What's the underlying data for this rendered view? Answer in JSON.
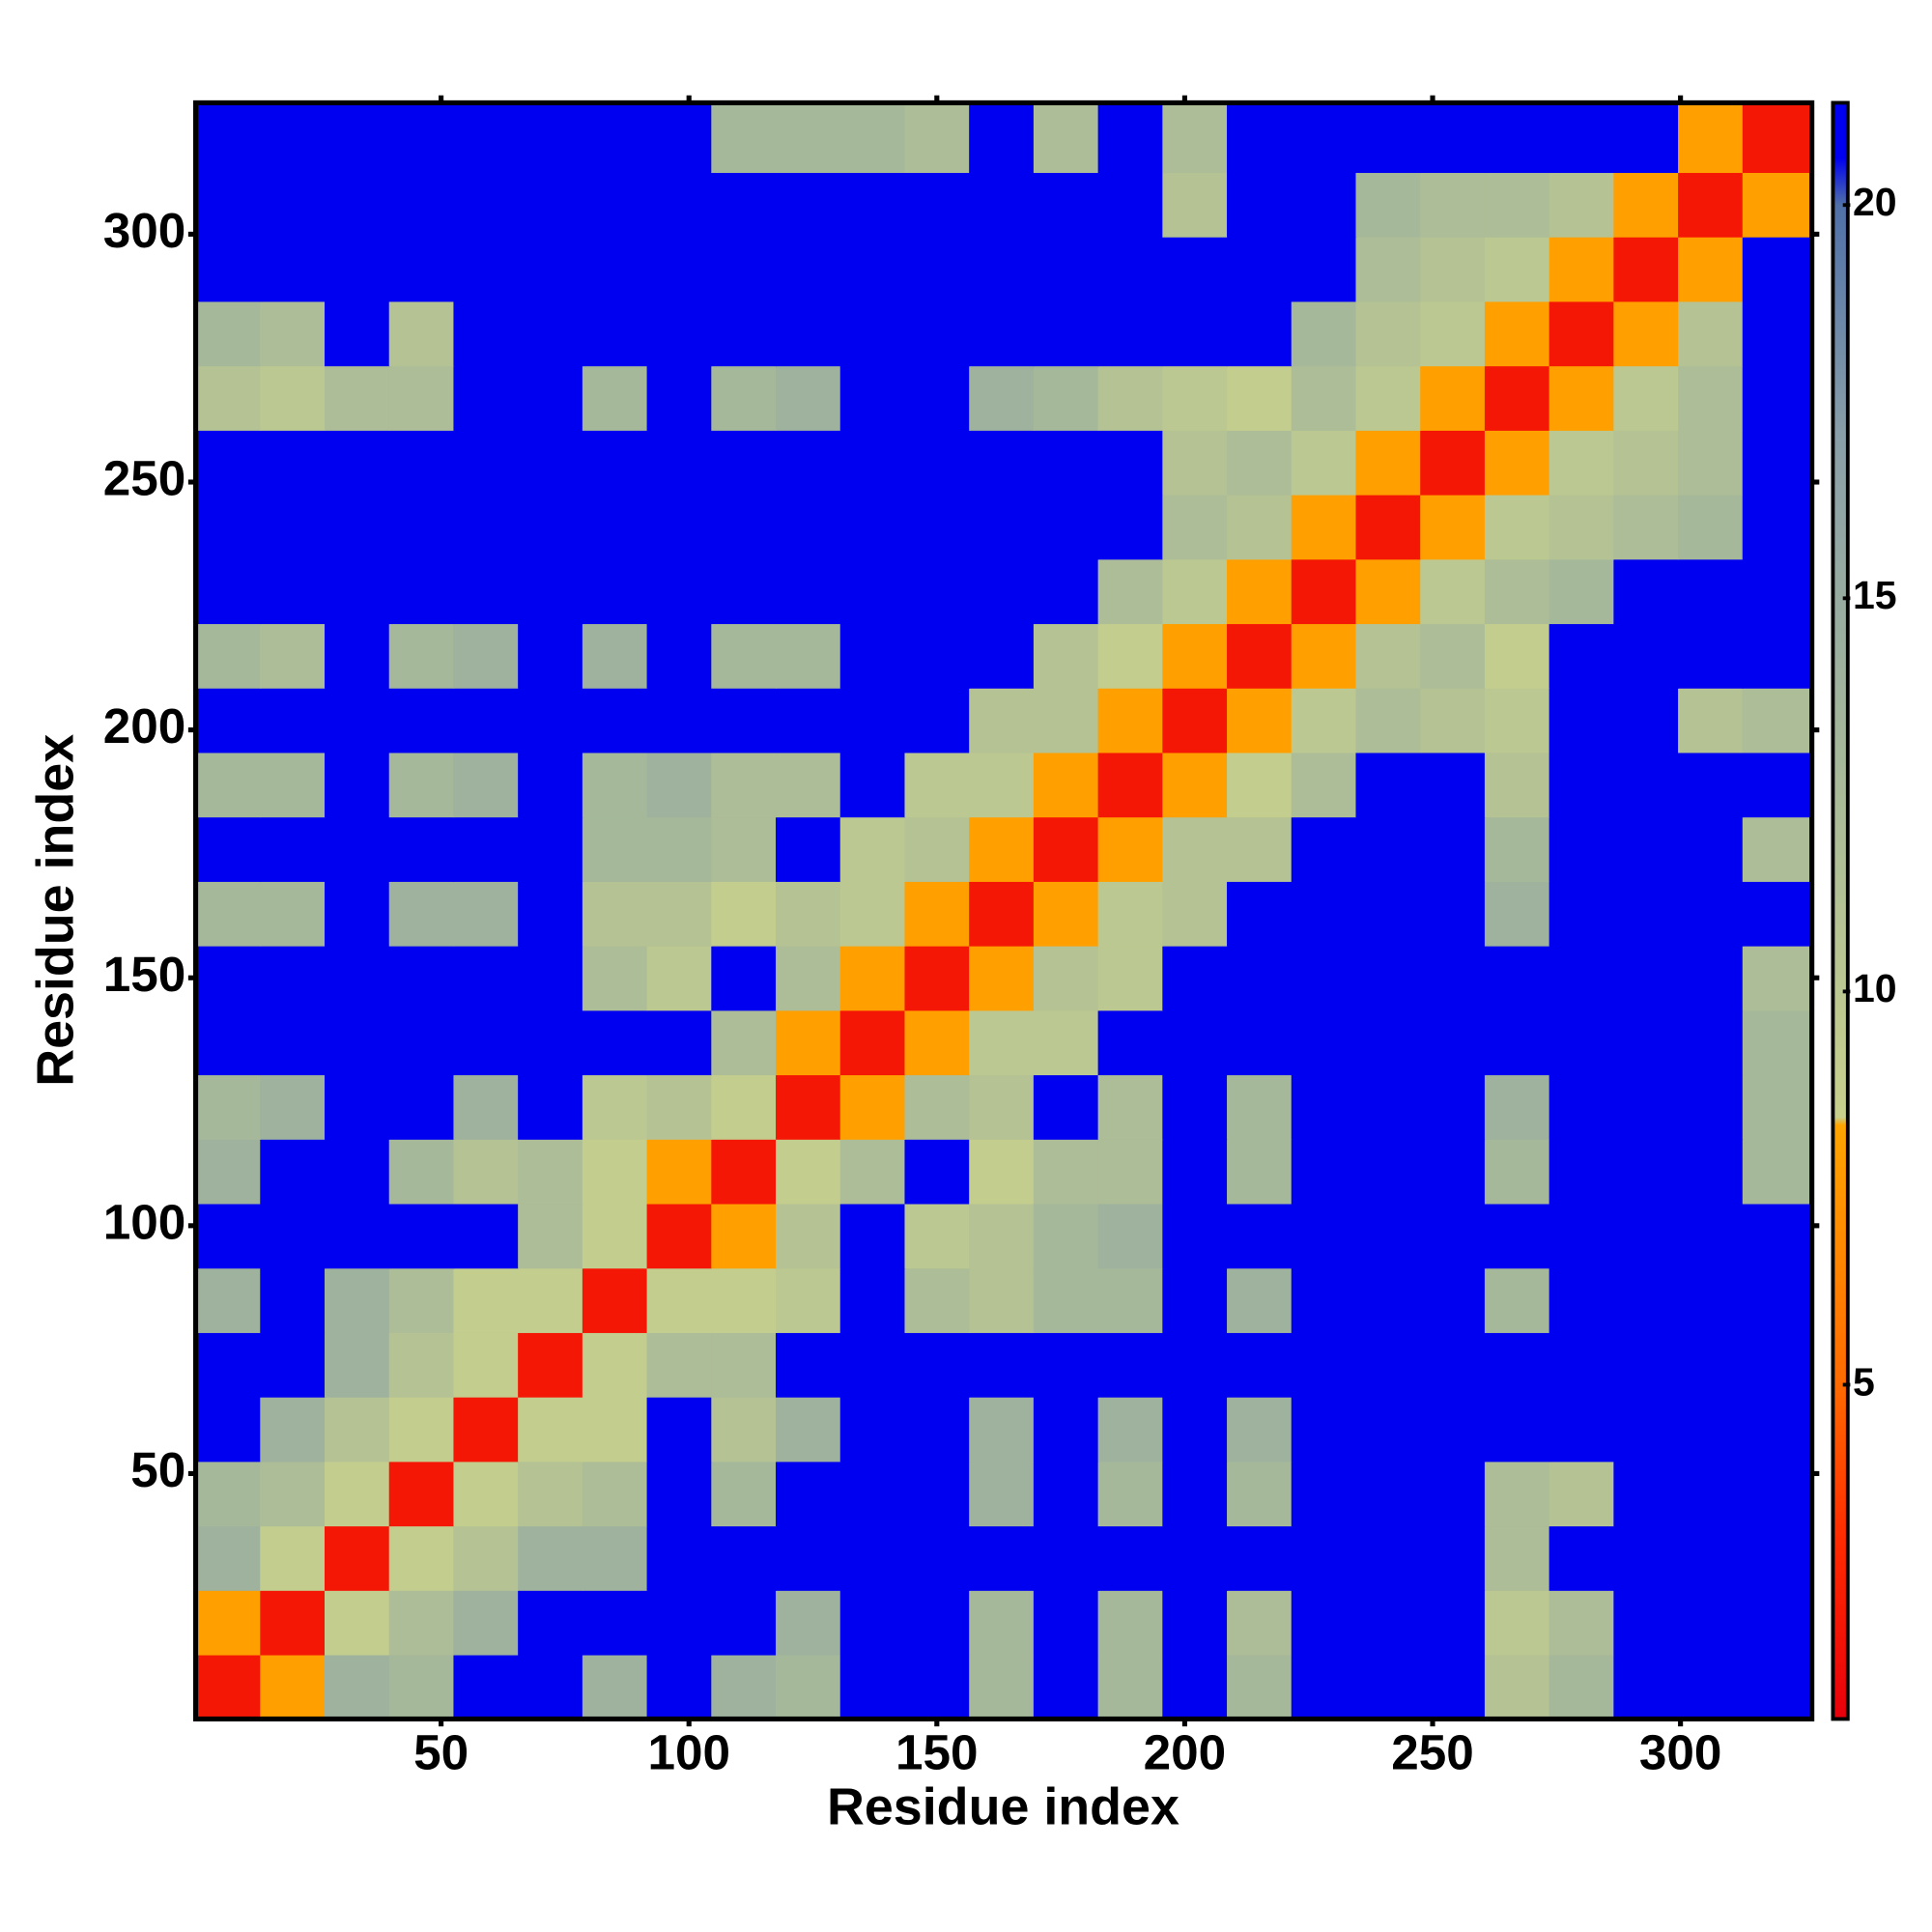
{
  "chart_data": {
    "type": "heatmap",
    "x_label": "Residue index",
    "y_label": "Residue index",
    "x_edges": [
      0.5,
      13.5,
      26.5,
      39.5,
      52.5,
      65.5,
      78.5,
      91.5,
      104.5,
      117.5,
      130.5,
      143.5,
      156.5,
      169.5,
      182.5,
      195.5,
      208.5,
      221.5,
      234.5,
      247.5,
      260.5,
      273.5,
      286.5,
      299.5,
      312.5,
      326.5
    ],
    "y_edges": [
      0.5,
      13.5,
      26.5,
      39.5,
      52.5,
      65.5,
      78.5,
      91.5,
      104.5,
      117.5,
      130.5,
      143.5,
      156.5,
      169.5,
      182.5,
      195.5,
      208.5,
      221.5,
      234.5,
      247.5,
      260.5,
      273.5,
      286.5,
      299.5,
      312.5,
      326.5
    ],
    "values": [
      [
        2,
        8,
        14,
        13,
        21,
        21,
        14,
        21,
        14,
        13,
        21,
        21,
        13,
        21,
        13,
        21,
        13,
        21,
        21,
        21,
        11,
        13,
        21,
        21,
        21
      ],
      [
        8,
        2,
        9,
        12,
        14,
        21,
        21,
        21,
        21,
        14,
        21,
        21,
        13,
        21,
        13,
        21,
        12,
        21,
        21,
        21,
        10,
        12,
        21,
        21,
        21
      ],
      [
        14,
        9,
        2,
        9,
        11,
        14,
        14,
        21,
        21,
        21,
        21,
        21,
        21,
        21,
        21,
        21,
        21,
        21,
        21,
        21,
        12,
        21,
        21,
        21,
        21
      ],
      [
        13,
        12,
        9,
        2,
        9,
        11,
        12,
        21,
        13,
        21,
        21,
        21,
        14,
        21,
        13,
        21,
        13,
        21,
        21,
        21,
        12,
        11,
        21,
        21,
        21
      ],
      [
        21,
        14,
        11,
        9,
        2,
        9,
        9,
        21,
        11,
        14,
        21,
        21,
        14,
        21,
        14,
        21,
        14,
        21,
        21,
        21,
        21,
        21,
        21,
        21,
        21
      ],
      [
        21,
        21,
        14,
        11,
        9,
        2,
        9,
        12,
        12,
        21,
        21,
        21,
        21,
        21,
        21,
        21,
        21,
        21,
        21,
        21,
        21,
        21,
        21,
        21,
        21
      ],
      [
        14,
        21,
        14,
        12,
        9,
        9,
        2,
        9,
        9,
        10,
        21,
        12,
        11,
        13,
        13,
        21,
        14,
        21,
        21,
        21,
        13,
        21,
        21,
        21,
        21
      ],
      [
        21,
        21,
        21,
        21,
        21,
        12,
        9,
        2,
        8,
        11,
        21,
        10,
        11,
        13,
        14,
        21,
        21,
        21,
        21,
        21,
        21,
        21,
        21,
        21,
        21
      ],
      [
        14,
        21,
        21,
        13,
        11,
        12,
        9,
        8,
        2,
        9,
        12,
        21,
        9,
        12,
        12,
        21,
        13,
        21,
        21,
        21,
        13,
        21,
        21,
        21,
        13
      ],
      [
        13,
        14,
        21,
        21,
        14,
        21,
        10,
        11,
        9,
        2,
        8,
        12,
        11,
        21,
        12,
        21,
        13,
        21,
        21,
        21,
        14,
        21,
        21,
        21,
        13
      ],
      [
        21,
        21,
        21,
        21,
        21,
        21,
        21,
        21,
        12,
        8,
        2,
        8,
        10,
        10,
        21,
        21,
        21,
        21,
        21,
        21,
        21,
        21,
        21,
        21,
        13
      ],
      [
        21,
        21,
        21,
        21,
        21,
        21,
        12,
        10,
        21,
        12,
        8,
        2,
        8,
        11,
        10,
        21,
        21,
        21,
        21,
        21,
        21,
        21,
        21,
        21,
        12
      ],
      [
        13,
        13,
        21,
        14,
        14,
        21,
        11,
        11,
        9,
        11,
        10,
        8,
        2,
        8,
        10,
        11,
        21,
        21,
        21,
        21,
        14,
        21,
        21,
        21,
        21
      ],
      [
        21,
        21,
        21,
        21,
        21,
        21,
        13,
        13,
        12,
        21,
        10,
        11,
        8,
        2,
        8,
        11,
        11,
        21,
        21,
        21,
        13,
        21,
        21,
        21,
        12
      ],
      [
        13,
        13,
        21,
        13,
        14,
        21,
        13,
        14,
        12,
        12,
        21,
        10,
        10,
        8,
        2,
        8,
        9,
        12,
        21,
        21,
        11,
        21,
        21,
        21,
        21
      ],
      [
        21,
        21,
        21,
        21,
        21,
        21,
        21,
        21,
        21,
        21,
        21,
        21,
        11,
        11,
        8,
        2,
        8,
        10,
        12,
        11,
        10,
        21,
        21,
        11,
        12
      ],
      [
        13,
        12,
        21,
        13,
        14,
        21,
        14,
        21,
        13,
        13,
        21,
        21,
        21,
        11,
        9,
        8,
        2,
        8,
        11,
        12,
        9,
        21,
        21,
        21,
        21
      ],
      [
        21,
        21,
        21,
        21,
        21,
        21,
        21,
        21,
        21,
        21,
        21,
        21,
        21,
        21,
        12,
        10,
        8,
        2,
        8,
        10,
        12,
        13,
        21,
        21,
        21
      ],
      [
        21,
        21,
        21,
        21,
        21,
        21,
        21,
        21,
        21,
        21,
        21,
        21,
        21,
        21,
        21,
        12,
        11,
        8,
        2,
        8,
        10,
        11,
        12,
        13,
        21
      ],
      [
        21,
        21,
        21,
        21,
        21,
        21,
        21,
        21,
        21,
        21,
        21,
        21,
        21,
        21,
        21,
        11,
        12,
        10,
        8,
        2,
        8,
        10,
        11,
        12,
        21
      ],
      [
        11,
        10,
        12,
        12,
        21,
        21,
        13,
        21,
        13,
        14,
        21,
        21,
        14,
        13,
        11,
        10,
        9,
        12,
        10,
        8,
        2,
        8,
        10,
        12,
        21
      ],
      [
        13,
        12,
        21,
        11,
        21,
        21,
        21,
        21,
        21,
        21,
        21,
        21,
        21,
        21,
        21,
        21,
        21,
        13,
        11,
        10,
        8,
        2,
        8,
        11,
        21
      ],
      [
        21,
        21,
        21,
        21,
        21,
        21,
        21,
        21,
        21,
        21,
        21,
        21,
        21,
        21,
        21,
        21,
        21,
        21,
        12,
        11,
        10,
        8,
        2,
        8,
        21
      ],
      [
        21,
        21,
        21,
        21,
        21,
        21,
        21,
        21,
        21,
        21,
        21,
        21,
        21,
        21,
        21,
        11,
        21,
        21,
        13,
        12,
        12,
        11,
        8,
        2,
        8
      ],
      [
        21,
        21,
        21,
        21,
        21,
        21,
        21,
        21,
        13,
        13,
        13,
        12,
        21,
        12,
        21,
        12,
        21,
        21,
        21,
        21,
        21,
        21,
        21,
        8,
        2
      ]
    ],
    "xlim": [
      0.5,
      326.5
    ],
    "ylim": [
      0.5,
      326.5
    ],
    "xticks": [
      50,
      100,
      150,
      200,
      250,
      300
    ],
    "yticks": [
      50,
      100,
      150,
      200,
      250,
      300
    ],
    "colorbar": {
      "lim": [
        0.75,
        21.3
      ],
      "ticks": [
        5,
        10,
        15,
        20
      ],
      "stops": [
        {
          "value": 0.75,
          "color": "#e8000b"
        },
        {
          "value": 3,
          "color": "#ff2a00"
        },
        {
          "value": 5,
          "color": "#ff6a00"
        },
        {
          "value": 8.3,
          "color": "#ffa500"
        },
        {
          "value": 8.4,
          "color": "#c8d08c"
        },
        {
          "value": 13,
          "color": "#a5b89a"
        },
        {
          "value": 17,
          "color": "#8aa0a8"
        },
        {
          "value": 20,
          "color": "#5070a8"
        },
        {
          "value": 20.6,
          "color": "#0000f0"
        },
        {
          "value": 21.3,
          "color": "#0000f0"
        }
      ]
    }
  }
}
